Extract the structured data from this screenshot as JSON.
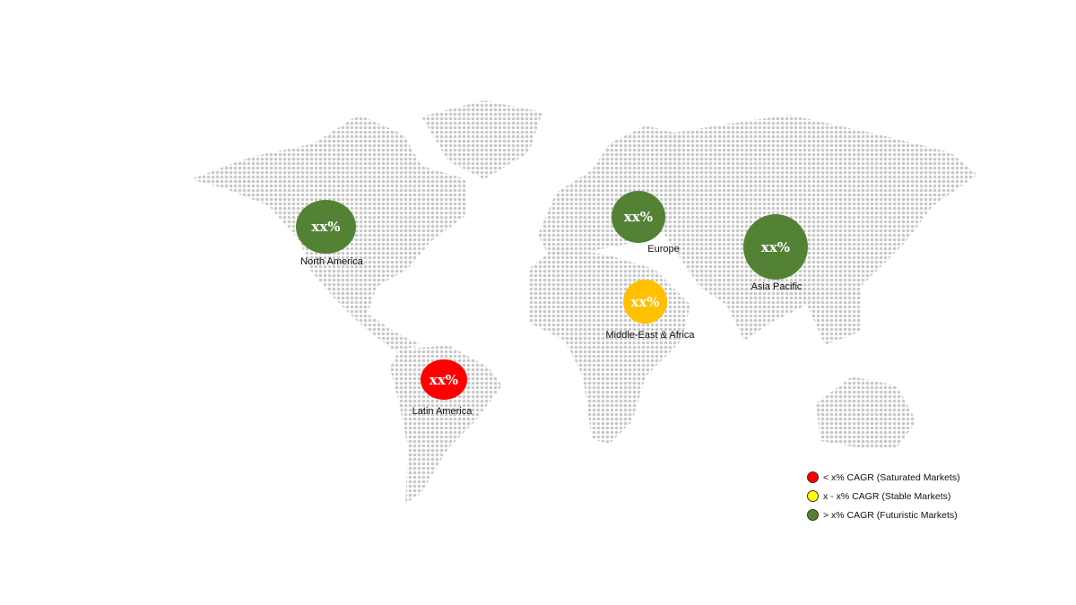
{
  "colors": {
    "futuristic": "#548235",
    "stable": "#ffc000",
    "saturated": "#ff0000",
    "map_dots": "#c8c8c8"
  },
  "regions": [
    {
      "name": "North America",
      "value": "xx%",
      "category": "futuristic"
    },
    {
      "name": "Europe",
      "value": "xx%",
      "category": "futuristic"
    },
    {
      "name": "Asia Pacific",
      "value": "xx%",
      "category": "futuristic"
    },
    {
      "name": "Middle-East & Africa",
      "value": "xx%",
      "category": "stable"
    },
    {
      "name": "Latin America",
      "value": "xx%",
      "category": "saturated"
    }
  ],
  "legend": [
    {
      "label": "< x% CAGR (Saturated Markets)",
      "color": "#ff0000"
    },
    {
      "label": "x - x% CAGR (Stable Markets)",
      "color": "#ffff00"
    },
    {
      "label": "> x% CAGR (Futuristic Markets)",
      "color": "#548235"
    }
  ]
}
